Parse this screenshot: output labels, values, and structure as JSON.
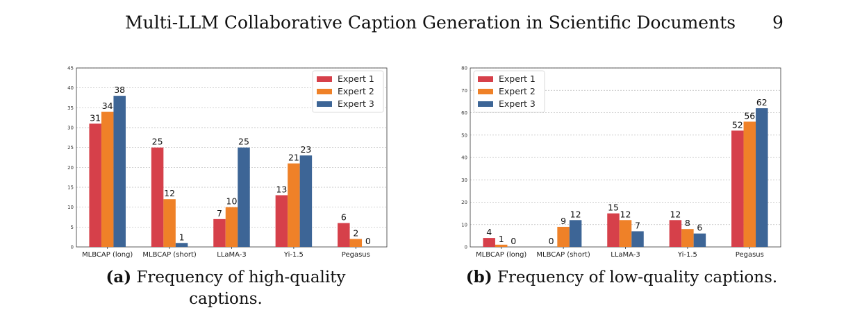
{
  "header": {
    "running_title": "Multi-LLM Collaborative Caption Generation in Scientific Documents",
    "page_number": "9"
  },
  "captions": [
    {
      "label": "(a)",
      "text": "Frequency of high-quality captions."
    },
    {
      "label": "(b)",
      "text": "Frequency of low-quality captions."
    }
  ],
  "colors": {
    "expert1": "#d6404a",
    "expert2": "#ef8128",
    "expert3": "#3d6596"
  },
  "chart_data": [
    {
      "type": "bar",
      "categories": [
        "MLBCAP (long)",
        "MLBCAP (short)",
        "LLaMA-3",
        "Yi-1.5",
        "Pegasus"
      ],
      "series": [
        {
          "name": "Expert 1",
          "values": [
            31,
            25,
            7,
            13,
            6
          ]
        },
        {
          "name": "Expert 2",
          "values": [
            34,
            12,
            10,
            21,
            2
          ]
        },
        {
          "name": "Expert 3",
          "values": [
            38,
            1,
            25,
            23,
            0
          ]
        }
      ],
      "ylim": [
        0,
        45
      ],
      "yticks": [
        0,
        5,
        10,
        15,
        20,
        25,
        30,
        35,
        40,
        45
      ],
      "grid": true,
      "legend": "top-right"
    },
    {
      "type": "bar",
      "categories": [
        "MLBCAP (long)",
        "MLBCAP (short)",
        "LLaMA-3",
        "Yi-1.5",
        "Pegasus"
      ],
      "series": [
        {
          "name": "Expert 1",
          "values": [
            4,
            0,
            15,
            12,
            52
          ]
        },
        {
          "name": "Expert 2",
          "values": [
            1,
            9,
            12,
            8,
            56
          ]
        },
        {
          "name": "Expert 3",
          "values": [
            0,
            12,
            7,
            6,
            62
          ]
        }
      ],
      "ylim": [
        0,
        80
      ],
      "yticks": [
        0,
        10,
        20,
        30,
        40,
        50,
        60,
        70,
        80
      ],
      "grid": true,
      "legend": "top-left"
    }
  ]
}
